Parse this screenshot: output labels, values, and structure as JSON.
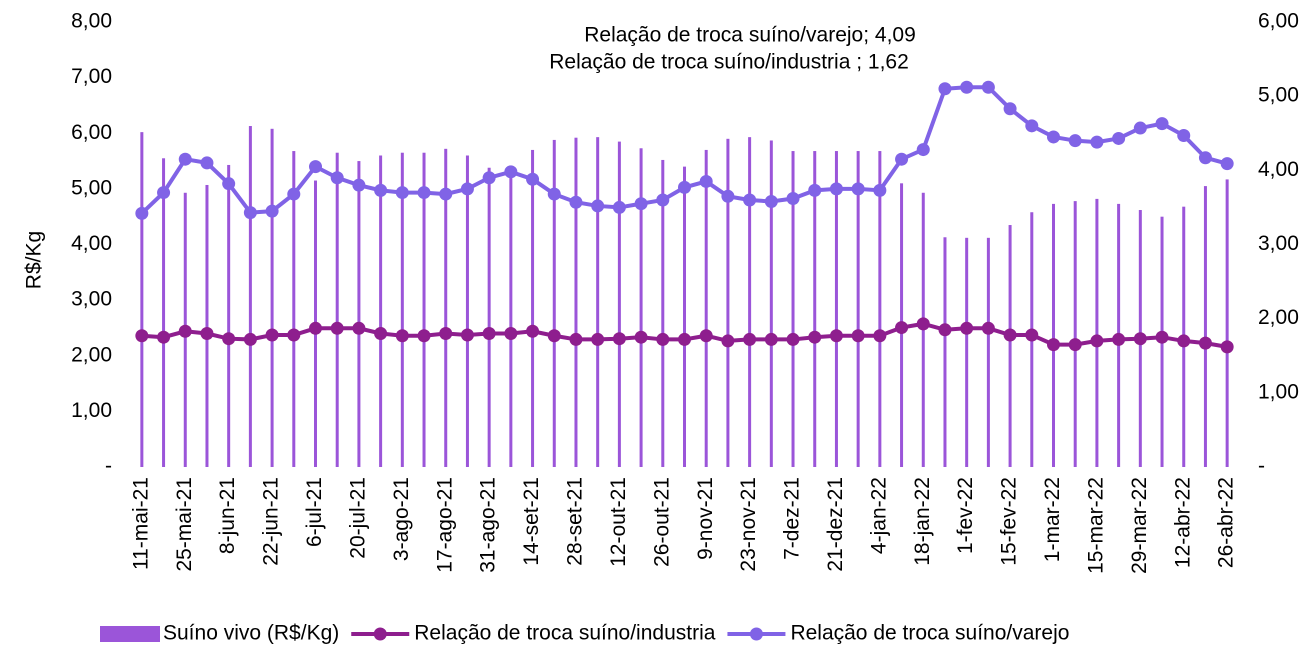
{
  "chart_data": {
    "type": "bar_line",
    "y_label": "R$/Kg",
    "annotations": [
      "Relação de troca suíno/varejo; 4,09",
      "Relação de troca suíno/industria ; 1,62"
    ],
    "categories": [
      "11-mai-21",
      null,
      "25-mai-21",
      null,
      "8-jun-21",
      null,
      "22-jun-21",
      null,
      "6-jul-21",
      null,
      "20-jul-21",
      null,
      "3-ago-21",
      null,
      "17-ago-21",
      null,
      "31-ago-21",
      null,
      "14-set-21",
      null,
      "28-set-21",
      null,
      "12-out-21",
      null,
      "26-out-21",
      null,
      "9-nov-21",
      null,
      "23-nov-21",
      null,
      "7-dez-21",
      null,
      "21-dez-21",
      null,
      "4-jan-22",
      null,
      "18-jan-22",
      null,
      "1-fev-22",
      null,
      "15-fev-22",
      null,
      "1-mar-22",
      null,
      "15-mar-22",
      null,
      "29-mar-22",
      null,
      "12-abr-22",
      null,
      "26-abr-22"
    ],
    "series": [
      {
        "name": "Suíno vivo (R$/Kg)",
        "type": "bar",
        "color": "#9b55d9",
        "values": [
          6.02,
          5.55,
          4.93,
          5.07,
          5.43,
          6.13,
          6.08,
          5.68,
          5.15,
          5.65,
          5.5,
          5.6,
          5.65,
          5.65,
          5.72,
          5.6,
          5.38,
          5.4,
          5.7,
          5.88,
          5.92,
          5.93,
          5.85,
          5.73,
          5.52,
          5.4,
          5.7,
          5.9,
          5.93,
          5.87,
          5.68,
          5.68,
          5.68,
          5.68,
          5.68,
          5.1,
          4.93,
          4.13,
          4.12,
          4.12,
          4.35,
          4.58,
          4.73,
          4.78,
          4.82,
          4.73,
          4.62,
          4.5,
          4.68,
          5.05,
          5.17
        ]
      },
      {
        "name": "Relação de troca suíno/industria",
        "type": "line",
        "axis": "y2",
        "color": "#8e1e8e",
        "values": [
          1.77,
          1.75,
          1.83,
          1.8,
          1.73,
          1.72,
          1.78,
          1.78,
          1.87,
          1.87,
          1.87,
          1.8,
          1.77,
          1.77,
          1.8,
          1.78,
          1.8,
          1.8,
          1.83,
          1.77,
          1.72,
          1.72,
          1.73,
          1.75,
          1.72,
          1.72,
          1.77,
          1.7,
          1.72,
          1.72,
          1.72,
          1.75,
          1.77,
          1.77,
          1.77,
          1.88,
          1.93,
          1.85,
          1.87,
          1.87,
          1.78,
          1.78,
          1.65,
          1.65,
          1.7,
          1.72,
          1.73,
          1.75,
          1.7,
          1.67,
          1.62
        ]
      },
      {
        "name": "Relação de troca suíno/varejo",
        "type": "line",
        "axis": "y2",
        "color": "#8063e6",
        "values": [
          3.42,
          3.7,
          4.15,
          4.1,
          3.82,
          3.43,
          3.45,
          3.68,
          4.05,
          3.9,
          3.8,
          3.73,
          3.7,
          3.7,
          3.68,
          3.75,
          3.9,
          3.98,
          3.88,
          3.68,
          3.57,
          3.52,
          3.5,
          3.55,
          3.6,
          3.77,
          3.85,
          3.65,
          3.6,
          3.58,
          3.62,
          3.73,
          3.75,
          3.75,
          3.73,
          4.15,
          4.28,
          5.1,
          5.12,
          5.12,
          4.83,
          4.6,
          4.45,
          4.4,
          4.38,
          4.43,
          4.57,
          4.63,
          4.47,
          4.17,
          4.09
        ]
      }
    ],
    "ylim": [
      0,
      8
    ],
    "yticks": [
      {
        "value": 0,
        "label": "-"
      },
      {
        "value": 1,
        "label": "1,00"
      },
      {
        "value": 2,
        "label": "2,00"
      },
      {
        "value": 3,
        "label": "3,00"
      },
      {
        "value": 4,
        "label": "4,00"
      },
      {
        "value": 5,
        "label": "5,00"
      },
      {
        "value": 6,
        "label": "6,00"
      },
      {
        "value": 7,
        "label": "7,00"
      },
      {
        "value": 8,
        "label": "8,00"
      }
    ],
    "y2lim": [
      0,
      6
    ],
    "y2ticks": [
      {
        "value": 0,
        "label": "-"
      },
      {
        "value": 1,
        "label": "1,00"
      },
      {
        "value": 2,
        "label": "2,00"
      },
      {
        "value": 3,
        "label": "3,00"
      },
      {
        "value": 4,
        "label": "4,00"
      },
      {
        "value": 5,
        "label": "5,00"
      },
      {
        "value": 6,
        "label": "6,00"
      }
    ],
    "grid": false,
    "legend": "bottom"
  }
}
